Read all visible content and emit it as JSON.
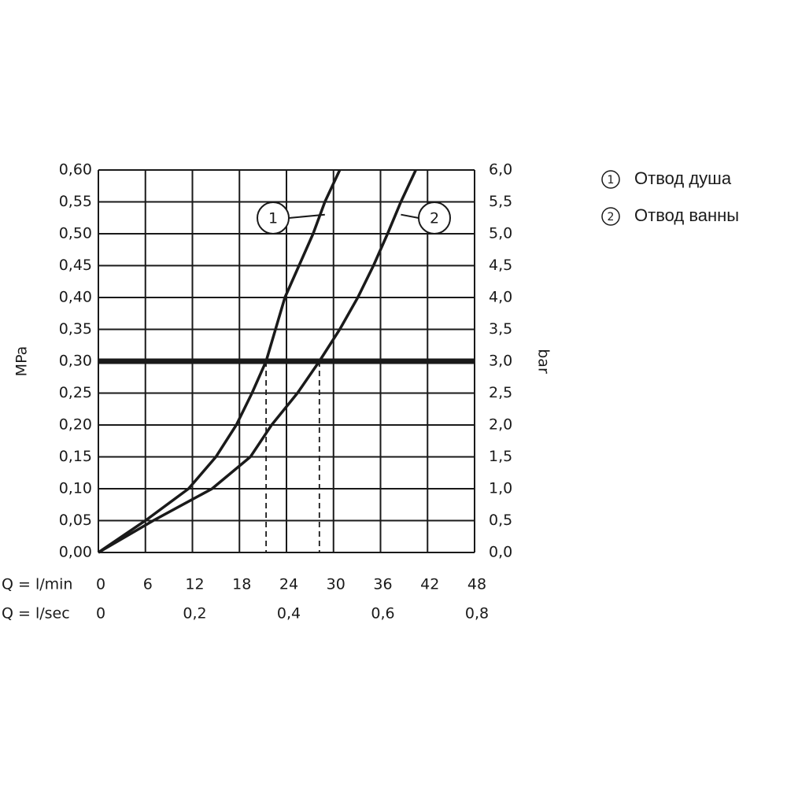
{
  "chart_data": {
    "type": "line",
    "xlabel": "Q = l/min",
    "x2label": "Q = l/sec",
    "ylabel": "MPa",
    "y2label": "bar",
    "xlim": [
      0,
      48
    ],
    "xticks": [
      0,
      6,
      12,
      18,
      24,
      30,
      36,
      42,
      48
    ],
    "x2lim": [
      0,
      0.8
    ],
    "x2ticks": [
      0,
      {
        "value": 0.2,
        "label": "0,2"
      },
      {
        "value": 0.4,
        "label": "0,4"
      },
      {
        "value": 0.6,
        "label": "0,6"
      },
      {
        "value": 0.8,
        "label": "0,8"
      }
    ],
    "ylim": [
      0,
      0.6
    ],
    "yticks": [
      {
        "value": 0,
        "label": "0,00"
      },
      {
        "value": 0.05,
        "label": "0,05"
      },
      {
        "value": 0.1,
        "label": "0,10"
      },
      {
        "value": 0.15,
        "label": "0,15"
      },
      {
        "value": 0.2,
        "label": "0,20"
      },
      {
        "value": 0.25,
        "label": "0,25"
      },
      {
        "value": 0.3,
        "label": "0,30"
      },
      {
        "value": 0.35,
        "label": "0,35"
      },
      {
        "value": 0.4,
        "label": "0,40"
      },
      {
        "value": 0.45,
        "label": "0,45"
      },
      {
        "value": 0.5,
        "label": "0,50"
      },
      {
        "value": 0.55,
        "label": "0,55"
      },
      {
        "value": 0.6,
        "label": "0,60"
      }
    ],
    "y2lim": [
      0,
      6
    ],
    "y2ticks": [
      {
        "value": 0,
        "label": "0,0"
      },
      {
        "value": 0.5,
        "label": "0,5"
      },
      {
        "value": 1,
        "label": "1,0"
      },
      {
        "value": 1.5,
        "label": "1,5"
      },
      {
        "value": 2,
        "label": "2,0"
      },
      {
        "value": 2.5,
        "label": "2,5"
      },
      {
        "value": 3,
        "label": "3,0"
      },
      {
        "value": 3.5,
        "label": "3,5"
      },
      {
        "value": 4,
        "label": "4,0"
      },
      {
        "value": 4.5,
        "label": "4,5"
      },
      {
        "value": 5,
        "label": "5,0"
      },
      {
        "value": 5.5,
        "label": "5,5"
      },
      {
        "value": 6,
        "label": "6,0"
      }
    ],
    "grid": true,
    "color": "#1a1a1a",
    "reference_line": 0.3,
    "markers": [
      {
        "x": 21.4,
        "y": 0.3
      },
      {
        "x": 28.2,
        "y": 0.3
      }
    ],
    "series": [
      {
        "name": "Отвод душа",
        "label": "1",
        "label_at": [
          28.9,
          0.53
        ],
        "x": [
          0,
          6,
          11.5,
          15,
          17.6,
          19.6,
          21.4,
          22.6,
          23.8,
          25.6,
          27.4,
          28.9,
          30.8
        ],
        "values": [
          0,
          0.05,
          0.1,
          0.15,
          0.2,
          0.25,
          0.3,
          0.35,
          0.4,
          0.45,
          0.5,
          0.55,
          0.6
        ]
      },
      {
        "name": "Отвод ванны",
        "label": "2",
        "label_at": [
          38.6,
          0.53
        ],
        "x": [
          0,
          7,
          14.5,
          19.4,
          22.1,
          25.4,
          28.2,
          30.8,
          33.1,
          35.1,
          36.9,
          38.6,
          40.5
        ],
        "values": [
          0,
          0.05,
          0.1,
          0.15,
          0.2,
          0.25,
          0.3,
          0.35,
          0.4,
          0.45,
          0.5,
          0.55,
          0.6
        ]
      }
    ]
  }
}
